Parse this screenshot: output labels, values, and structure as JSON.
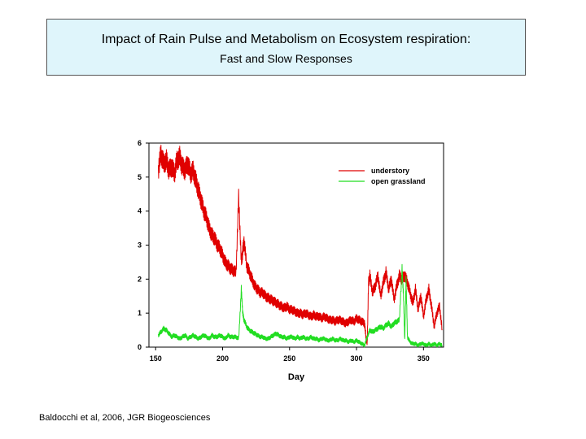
{
  "header": {
    "title": "Impact of Rain Pulse and Metabolism on Ecosystem respiration:",
    "subtitle": "Fast and Slow Responses"
  },
  "citation": "Baldocchi et al, 2006, JGR Biogeosciences",
  "chart_data": {
    "type": "line",
    "title": "",
    "xlabel": "Day",
    "ylabel": "",
    "xlim": [
      145,
      365
    ],
    "ylim": [
      0,
      6
    ],
    "xticks": [
      150,
      200,
      250,
      300,
      350
    ],
    "yticks": [
      0,
      1,
      2,
      3,
      4,
      5,
      6
    ],
    "grid": false,
    "legend_position": "top-right",
    "series": [
      {
        "name": "understory",
        "color": "#e00000",
        "x": [
          152,
          154,
          156,
          158,
          160,
          162,
          164,
          166,
          168,
          170,
          172,
          174,
          176,
          178,
          180,
          182,
          184,
          186,
          188,
          190,
          192,
          194,
          196,
          198,
          200,
          202,
          204,
          206,
          208,
          210,
          212,
          214,
          215,
          216,
          218,
          220,
          222,
          224,
          226,
          228,
          230,
          232,
          234,
          236,
          238,
          240,
          242,
          244,
          246,
          248,
          250,
          252,
          254,
          256,
          258,
          260,
          262,
          264,
          266,
          268,
          270,
          272,
          274,
          276,
          278,
          280,
          282,
          284,
          286,
          288,
          290,
          292,
          294,
          296,
          298,
          300,
          302,
          304,
          306,
          307,
          308,
          309,
          310,
          312,
          314,
          316,
          318,
          320,
          322,
          324,
          326,
          328,
          330,
          332,
          334,
          336,
          338,
          340,
          342,
          344,
          346,
          348,
          350,
          352,
          354,
          356,
          358,
          360,
          362,
          364
        ],
        "y": [
          5.2,
          5.7,
          5.4,
          5.5,
          5.2,
          5.3,
          5.1,
          5.5,
          5.6,
          5.3,
          5.2,
          5.4,
          5.1,
          5.2,
          4.9,
          4.6,
          4.3,
          4.0,
          3.8,
          3.5,
          3.3,
          3.2,
          3.0,
          2.9,
          2.7,
          2.5,
          2.4,
          2.3,
          2.25,
          2.2,
          4.4,
          2.5,
          2.8,
          3.1,
          2.4,
          2.2,
          2.0,
          1.8,
          1.7,
          1.6,
          1.6,
          1.5,
          1.45,
          1.4,
          1.35,
          1.3,
          1.25,
          1.2,
          1.15,
          1.2,
          1.1,
          1.1,
          1.05,
          1.0,
          1.0,
          0.95,
          1.0,
          0.95,
          0.9,
          0.95,
          0.9,
          0.9,
          0.85,
          0.9,
          0.85,
          0.8,
          0.8,
          0.75,
          0.8,
          0.8,
          0.75,
          0.7,
          0.75,
          0.8,
          0.75,
          0.85,
          0.8,
          0.75,
          0.7,
          0.3,
          0.1,
          1.9,
          2.1,
          1.6,
          1.8,
          2.1,
          1.5,
          1.9,
          2.2,
          1.7,
          2.0,
          1.4,
          1.8,
          2.1,
          2.0,
          2.1,
          1.9,
          1.6,
          1.3,
          1.7,
          1.1,
          1.5,
          0.9,
          1.4,
          1.7,
          1.2,
          0.6,
          1.0,
          1.2,
          0.5
        ]
      },
      {
        "name": "open grassland",
        "color": "#22dd22",
        "x": [
          152,
          154,
          156,
          158,
          160,
          162,
          164,
          166,
          168,
          170,
          172,
          174,
          176,
          178,
          180,
          182,
          184,
          186,
          188,
          190,
          192,
          194,
          196,
          198,
          200,
          202,
          204,
          206,
          208,
          210,
          212,
          214,
          215,
          216,
          218,
          220,
          222,
          224,
          226,
          228,
          230,
          232,
          234,
          236,
          238,
          240,
          242,
          244,
          246,
          248,
          250,
          252,
          254,
          256,
          258,
          260,
          262,
          264,
          266,
          268,
          270,
          272,
          274,
          276,
          278,
          280,
          282,
          284,
          286,
          288,
          290,
          292,
          294,
          296,
          298,
          300,
          302,
          304,
          306,
          308,
          310,
          312,
          314,
          316,
          318,
          320,
          322,
          324,
          326,
          328,
          330,
          332,
          334,
          335,
          336,
          337,
          338,
          340,
          342,
          344,
          346,
          348,
          350,
          352,
          354,
          356,
          358,
          360,
          362,
          364
        ],
        "y": [
          0.35,
          0.45,
          0.55,
          0.5,
          0.4,
          0.3,
          0.35,
          0.3,
          0.25,
          0.3,
          0.35,
          0.25,
          0.3,
          0.35,
          0.3,
          0.25,
          0.3,
          0.35,
          0.3,
          0.25,
          0.35,
          0.3,
          0.3,
          0.35,
          0.3,
          0.25,
          0.35,
          0.3,
          0.3,
          0.3,
          0.25,
          1.7,
          1.0,
          0.8,
          0.6,
          0.5,
          0.45,
          0.4,
          0.35,
          0.3,
          0.3,
          0.25,
          0.25,
          0.3,
          0.35,
          0.4,
          0.35,
          0.3,
          0.3,
          0.25,
          0.3,
          0.3,
          0.25,
          0.3,
          0.25,
          0.3,
          0.25,
          0.25,
          0.3,
          0.25,
          0.25,
          0.2,
          0.25,
          0.25,
          0.2,
          0.2,
          0.25,
          0.2,
          0.2,
          0.25,
          0.2,
          0.2,
          0.15,
          0.2,
          0.15,
          0.2,
          0.15,
          0.1,
          0.05,
          0.3,
          0.5,
          0.45,
          0.5,
          0.55,
          0.6,
          0.55,
          0.65,
          0.7,
          0.6,
          0.7,
          0.75,
          0.8,
          2.3,
          1.6,
          0.2,
          2.0,
          0.3,
          0.15,
          0.1,
          0.1,
          0.05,
          0.1,
          0.1,
          0.05,
          0.1,
          0.05,
          0.1,
          0.05,
          0.1,
          0.05
        ]
      }
    ]
  }
}
